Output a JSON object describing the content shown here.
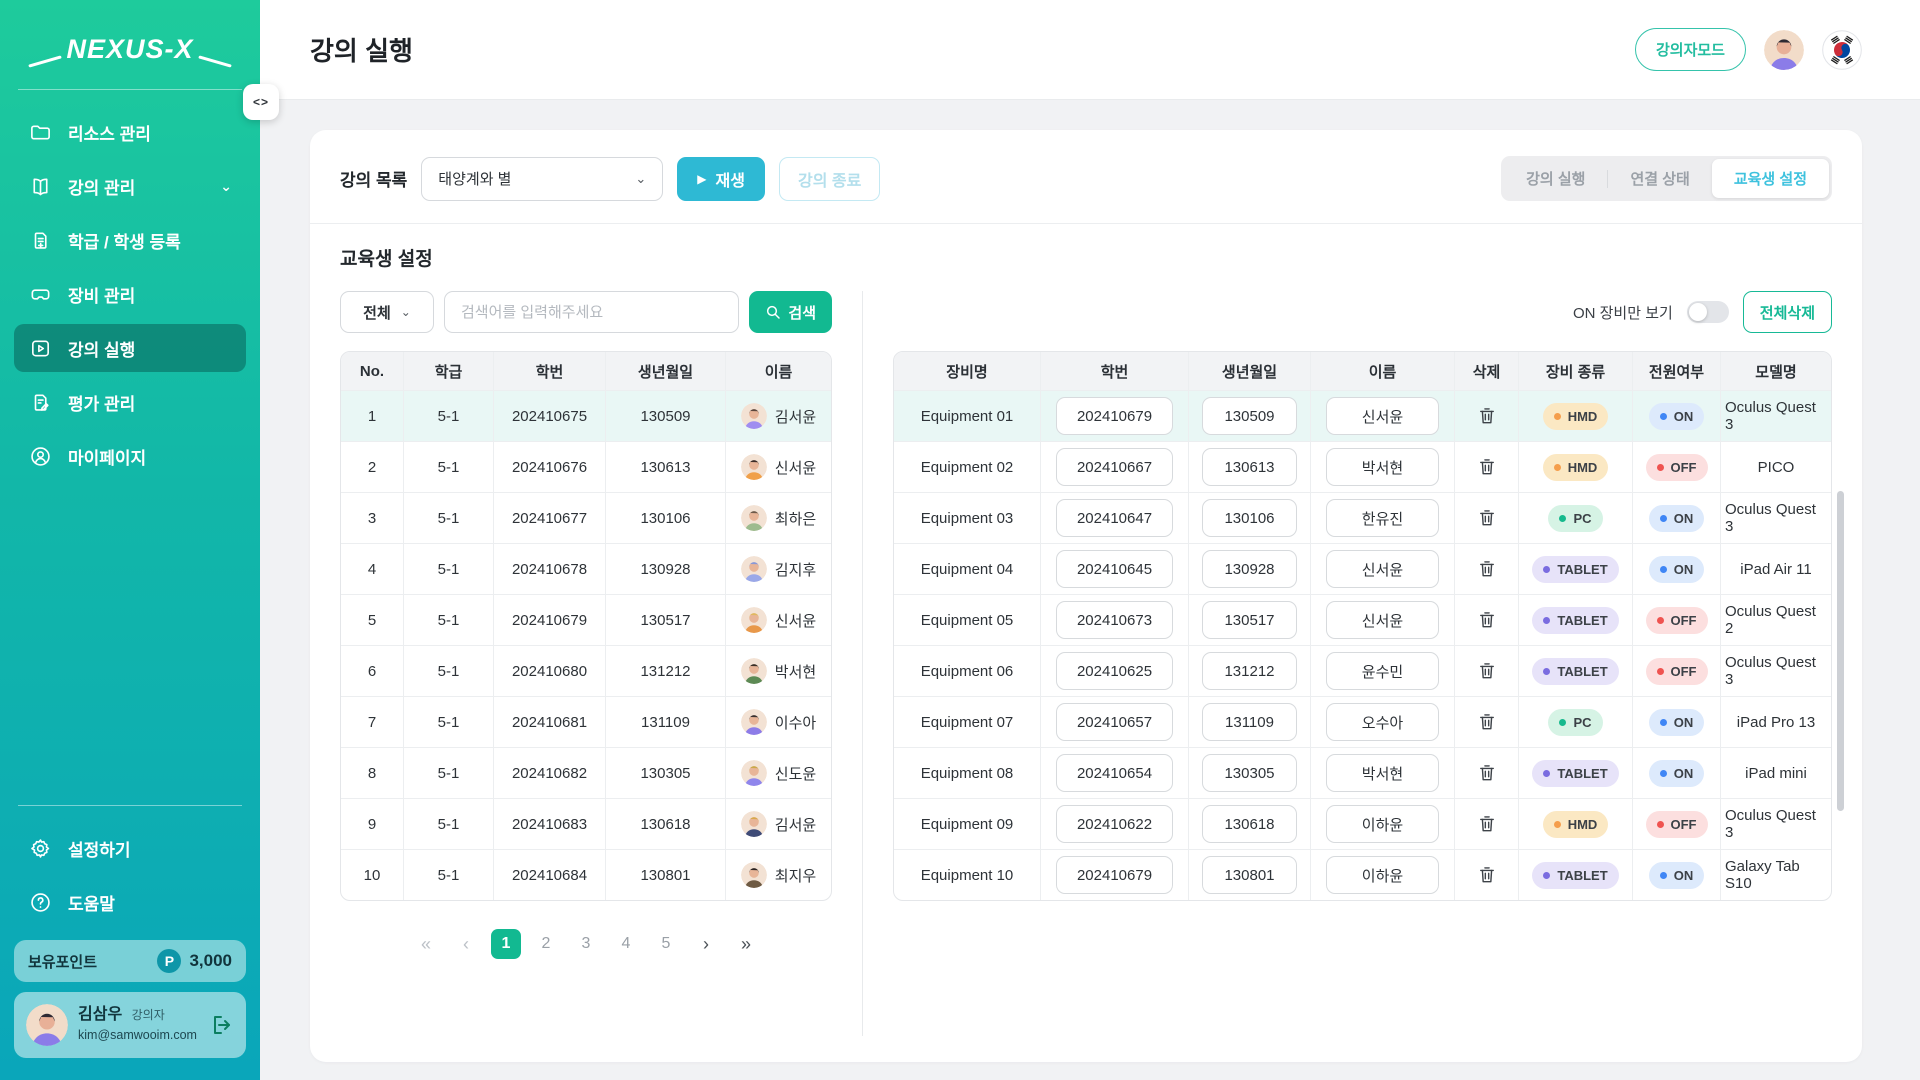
{
  "colors": {
    "accent_cyan": "#2eb9d4",
    "accent_green": "#12b991",
    "sidebar_top": "#1ecb9c",
    "sidebar_bottom": "#0aa6ba",
    "highlight_row": "#e9f7f5"
  },
  "sidebar": {
    "logo": "NEXUS-X",
    "items": [
      {
        "label": "리소스 관리",
        "icon": "folder-icon",
        "active": false,
        "chevron": false
      },
      {
        "label": "강의 관리",
        "icon": "book-icon",
        "active": false,
        "chevron": true
      },
      {
        "label": "학급 / 학생 등록",
        "icon": "student-register-icon",
        "active": false,
        "chevron": false
      },
      {
        "label": "장비 관리",
        "icon": "vr-headset-icon",
        "active": false,
        "chevron": false
      },
      {
        "label": "강의 실행",
        "icon": "play-square-icon",
        "active": true,
        "chevron": false
      },
      {
        "label": "평가 관리",
        "icon": "evaluation-icon",
        "active": false,
        "chevron": false
      },
      {
        "label": "마이페이지",
        "icon": "mypage-icon",
        "active": false,
        "chevron": false
      }
    ],
    "footer_items": [
      {
        "label": "설정하기",
        "icon": "gear-icon"
      },
      {
        "label": "도움말",
        "icon": "help-icon"
      }
    ],
    "points": {
      "label": "보유포인트",
      "badge": "P",
      "value": "3,000"
    },
    "user": {
      "name": "김삼우",
      "role": "강의자",
      "email": "kim@samwooim.com"
    },
    "collapse_glyph": "<>"
  },
  "header": {
    "title": "강의 실행",
    "mode_button": "강의자모드"
  },
  "controls": {
    "lecture_list_label": "강의 목록",
    "lecture_select_value": "태양계와 별",
    "play_button": "재생",
    "play_glyph": "▶",
    "end_button": "강의 종료",
    "tabs": [
      {
        "label": "강의 실행",
        "active": false
      },
      {
        "label": "연결 상태",
        "active": false
      },
      {
        "label": "교육생 설정",
        "active": true
      }
    ]
  },
  "section": {
    "title": "교육생 설정",
    "filter_select": "전체",
    "search_placeholder": "검색어를 입력해주세요",
    "search_button": "검색",
    "toggle_label": "ON 장비만 보기",
    "toggle_on": false,
    "delete_all_button": "전체삭제"
  },
  "students_table": {
    "headers": [
      "No.",
      "학급",
      "학번",
      "생년월일",
      "이름"
    ],
    "rows": [
      {
        "no": "1",
        "class": "5-1",
        "student_id": "202410675",
        "birth": "130509",
        "name": "김서윤",
        "highlight": true,
        "avatar": {
          "shirt": "#9f8df0",
          "hair": "#5a463c"
        }
      },
      {
        "no": "2",
        "class": "5-1",
        "student_id": "202410676",
        "birth": "130613",
        "name": "신서윤",
        "highlight": false,
        "avatar": {
          "shirt": "#f0a04a",
          "hair": "#3a2b28"
        }
      },
      {
        "no": "3",
        "class": "5-1",
        "student_id": "202410677",
        "birth": "130106",
        "name": "최하은",
        "highlight": false,
        "avatar": {
          "shirt": "#9dbb8e",
          "hair": "#6e5a4a"
        }
      },
      {
        "no": "4",
        "class": "5-1",
        "student_id": "202410678",
        "birth": "130928",
        "name": "김지후",
        "highlight": false,
        "avatar": {
          "shirt": "#9aa8e8",
          "hair": "#8898d8"
        }
      },
      {
        "no": "5",
        "class": "5-1",
        "student_id": "202410679",
        "birth": "130517",
        "name": "신서윤",
        "highlight": false,
        "avatar": {
          "shirt": "#e8984a",
          "hair": "#e0b860"
        }
      },
      {
        "no": "6",
        "class": "5-1",
        "student_id": "202410680",
        "birth": "131212",
        "name": "박서현",
        "highlight": false,
        "avatar": {
          "shirt": "#5d8a55",
          "hair": "#3a3028"
        }
      },
      {
        "no": "7",
        "class": "5-1",
        "student_id": "202410681",
        "birth": "131109",
        "name": "이수아",
        "highlight": false,
        "avatar": {
          "shirt": "#8d7ce8",
          "hair": "#3a3232"
        }
      },
      {
        "no": "8",
        "class": "5-1",
        "student_id": "202410682",
        "birth": "130305",
        "name": "신도윤",
        "highlight": false,
        "avatar": {
          "shirt": "#8f86ec",
          "hair": "#caa84a"
        }
      },
      {
        "no": "9",
        "class": "5-1",
        "student_id": "202410683",
        "birth": "130618",
        "name": "김서윤",
        "highlight": false,
        "avatar": {
          "shirt": "#3f4b77",
          "hair": "#d8a84e"
        }
      },
      {
        "no": "10",
        "class": "5-1",
        "student_id": "202410684",
        "birth": "130801",
        "name": "최지우",
        "highlight": false,
        "avatar": {
          "shirt": "#6e5a43",
          "hair": "#2e2624"
        }
      }
    ]
  },
  "equipment_table": {
    "headers": [
      "장비명",
      "학번",
      "생년월일",
      "이름",
      "삭제",
      "장비 종류",
      "전원여부",
      "모델명"
    ],
    "rows": [
      {
        "equipment": "Equipment 01",
        "student_id": "202410679",
        "birth": "130509",
        "name": "신서윤",
        "type": "HMD",
        "power": "ON",
        "model": "Oculus Quest 3",
        "highlight": true
      },
      {
        "equipment": "Equipment 02",
        "student_id": "202410667",
        "birth": "130613",
        "name": "박서현",
        "type": "HMD",
        "power": "OFF",
        "model": "PICO",
        "highlight": false
      },
      {
        "equipment": "Equipment 03",
        "student_id": "202410647",
        "birth": "130106",
        "name": "한유진",
        "type": "PC",
        "power": "ON",
        "model": "Oculus Quest 3",
        "highlight": false
      },
      {
        "equipment": "Equipment 04",
        "student_id": "202410645",
        "birth": "130928",
        "name": "신서윤",
        "type": "TABLET",
        "power": "ON",
        "model": "iPad Air 11",
        "highlight": false
      },
      {
        "equipment": "Equipment 05",
        "student_id": "202410673",
        "birth": "130517",
        "name": "신서윤",
        "type": "TABLET",
        "power": "OFF",
        "model": "Oculus Quest 2",
        "highlight": false
      },
      {
        "equipment": "Equipment 06",
        "student_id": "202410625",
        "birth": "131212",
        "name": "윤수민",
        "type": "TABLET",
        "power": "OFF",
        "model": "Oculus Quest 3",
        "highlight": false
      },
      {
        "equipment": "Equipment 07",
        "student_id": "202410657",
        "birth": "131109",
        "name": "오수아",
        "type": "PC",
        "power": "ON",
        "model": "iPad Pro 13",
        "highlight": false
      },
      {
        "equipment": "Equipment 08",
        "student_id": "202410654",
        "birth": "130305",
        "name": "박서현",
        "type": "TABLET",
        "power": "ON",
        "model": "iPad mini",
        "highlight": false
      },
      {
        "equipment": "Equipment 09",
        "student_id": "202410622",
        "birth": "130618",
        "name": "이하윤",
        "type": "HMD",
        "power": "OFF",
        "model": "Oculus Quest 3",
        "highlight": false
      },
      {
        "equipment": "Equipment 10",
        "student_id": "202410679",
        "birth": "130801",
        "name": "이하윤",
        "type": "TABLET",
        "power": "ON",
        "model": "Galaxy Tab S10",
        "highlight": false
      }
    ]
  },
  "badge_styles": {
    "HMD": {
      "bg": "#fbe8c3",
      "dot": "#f59e4c"
    },
    "PC": {
      "bg": "#d6f3e5",
      "dot": "#16b98d"
    },
    "TABLET": {
      "bg": "#e7e3f9",
      "dot": "#7a6ce0"
    },
    "ON": {
      "bg": "#ddeafc",
      "dot": "#3f86f5"
    },
    "OFF": {
      "bg": "#fcdfdf",
      "dot": "#ef5350"
    }
  },
  "pagination": {
    "first": "«",
    "prev": "‹",
    "next": "›",
    "last": "»",
    "pages": [
      "1",
      "2",
      "3",
      "4",
      "5"
    ],
    "active": "1"
  }
}
